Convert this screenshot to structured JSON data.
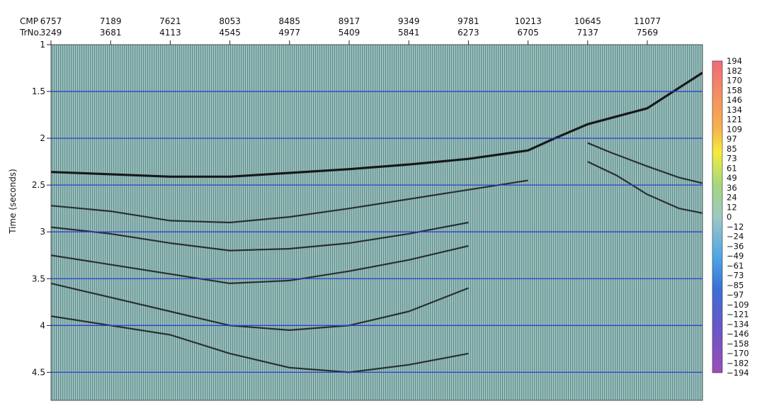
{
  "chart_data": {
    "type": "heatmap",
    "title": "",
    "ylabel": "Time (seconds)",
    "y_reversed": true,
    "ylim": [
      1,
      4.8
    ],
    "header_rows": [
      {
        "name": "CMP",
        "values": [
          "6757",
          "7189",
          "7621",
          "8053",
          "8485",
          "8917",
          "9349",
          "9781",
          "10213",
          "10645",
          "11077"
        ]
      },
      {
        "name": "TrNo.",
        "values": [
          "3249",
          "3681",
          "4113",
          "4545",
          "4977",
          "5409",
          "5841",
          "6273",
          "6705",
          "7137",
          "7569"
        ]
      }
    ],
    "trace_ticks": [
      3249,
      3681,
      4113,
      4545,
      4977,
      5409,
      5841,
      6273,
      6705,
      7137,
      7569
    ],
    "trace_range": [
      3249,
      7969
    ],
    "y_ticks": [
      "1",
      "1.5",
      "2",
      "2.5",
      "3",
      "3.5",
      "4",
      "4.5"
    ],
    "y_tick_values": [
      1,
      1.5,
      2,
      2.5,
      3,
      3.5,
      4,
      4.5
    ],
    "grid": "horizontal lines at y ticks (blue)",
    "grid_color": "#2b3fd1",
    "background_fill": "#9ec8c4",
    "colorbar": {
      "placement": "right",
      "range": [
        -194,
        194
      ],
      "tick_labels": [
        "194",
        "182",
        "170",
        "158",
        "146",
        "134",
        "121",
        "109",
        "97",
        "85",
        "73",
        "61",
        "49",
        "36",
        "24",
        "12",
        "0",
        "−12",
        "−24",
        "−36",
        "−49",
        "−61",
        "−73",
        "−85",
        "−97",
        "−109",
        "−121",
        "−134",
        "−146",
        "−158",
        "−170",
        "−182",
        "−194"
      ],
      "color_stops": [
        {
          "value": 194,
          "color": "#f06a78"
        },
        {
          "value": 110,
          "color": "#f7b24e"
        },
        {
          "value": 80,
          "color": "#f4ec3c"
        },
        {
          "value": 40,
          "color": "#a5d77e"
        },
        {
          "value": 0,
          "color": "#9ec8c4"
        },
        {
          "value": -50,
          "color": "#4fa6e6"
        },
        {
          "value": -90,
          "color": "#3a6fd8"
        },
        {
          "value": -140,
          "color": "#6b55c8"
        },
        {
          "value": -194,
          "color": "#9a4eb8"
        }
      ]
    },
    "reflectors": [
      {
        "points": [
          [
            3249,
            2.36
          ],
          [
            3600,
            2.38
          ],
          [
            4113,
            2.41
          ],
          [
            4545,
            2.41
          ],
          [
            4977,
            2.37
          ],
          [
            5409,
            2.33
          ],
          [
            5841,
            2.28
          ],
          [
            6273,
            2.22
          ],
          [
            6705,
            2.13
          ],
          [
            6900,
            2.0
          ],
          [
            7137,
            1.85
          ],
          [
            7569,
            1.68
          ],
          [
            7969,
            1.3
          ]
        ]
      },
      {
        "points": [
          [
            3249,
            2.72
          ],
          [
            3681,
            2.78
          ],
          [
            4113,
            2.88
          ],
          [
            4545,
            2.9
          ],
          [
            4977,
            2.84
          ],
          [
            5409,
            2.75
          ],
          [
            5841,
            2.65
          ],
          [
            6273,
            2.55
          ],
          [
            6705,
            2.45
          ]
        ]
      },
      {
        "points": [
          [
            3249,
            2.95
          ],
          [
            3681,
            3.02
          ],
          [
            4113,
            3.12
          ],
          [
            4545,
            3.2
          ],
          [
            4977,
            3.18
          ],
          [
            5409,
            3.12
          ],
          [
            5841,
            3.02
          ],
          [
            6273,
            2.9
          ]
        ]
      },
      {
        "points": [
          [
            3249,
            3.25
          ],
          [
            3681,
            3.35
          ],
          [
            4113,
            3.45
          ],
          [
            4545,
            3.55
          ],
          [
            4977,
            3.52
          ],
          [
            5409,
            3.42
          ],
          [
            5841,
            3.3
          ],
          [
            6273,
            3.15
          ]
        ]
      },
      {
        "points": [
          [
            3249,
            3.55
          ],
          [
            3681,
            3.7
          ],
          [
            4113,
            3.85
          ],
          [
            4545,
            4.0
          ],
          [
            4977,
            4.05
          ],
          [
            5409,
            4.0
          ],
          [
            5841,
            3.85
          ],
          [
            6273,
            3.6
          ]
        ]
      },
      {
        "points": [
          [
            3249,
            3.9
          ],
          [
            3681,
            4.0
          ],
          [
            4113,
            4.1
          ],
          [
            4545,
            4.3
          ],
          [
            4977,
            4.45
          ],
          [
            5409,
            4.5
          ],
          [
            5841,
            4.42
          ],
          [
            6273,
            4.3
          ]
        ]
      },
      {
        "points": [
          [
            7137,
            2.05
          ],
          [
            7300,
            2.15
          ],
          [
            7569,
            2.3
          ],
          [
            7800,
            2.42
          ],
          [
            7969,
            2.48
          ]
        ]
      },
      {
        "points": [
          [
            7137,
            2.25
          ],
          [
            7350,
            2.4
          ],
          [
            7569,
            2.6
          ],
          [
            7800,
            2.75
          ],
          [
            7969,
            2.8
          ]
        ]
      }
    ]
  }
}
